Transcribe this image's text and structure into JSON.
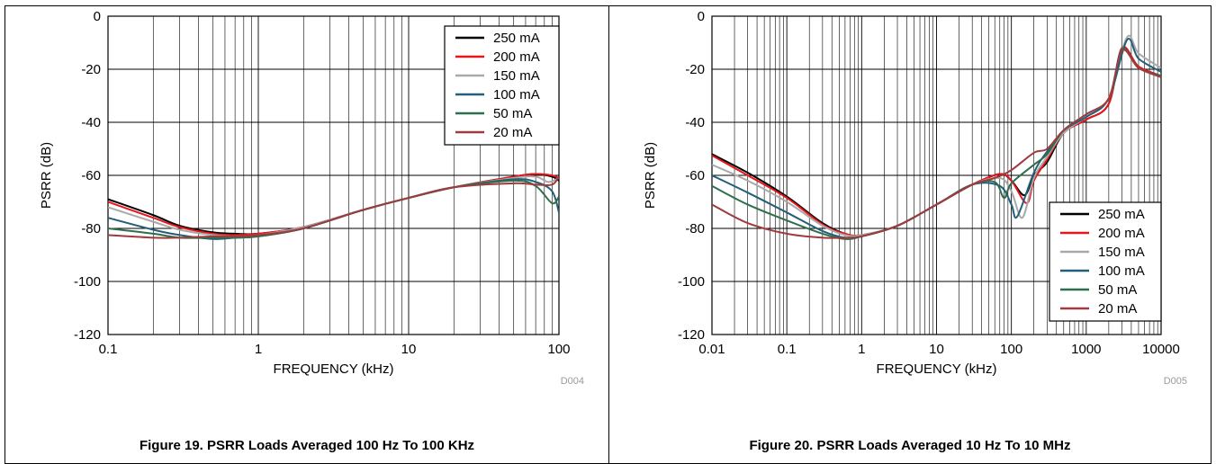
{
  "figures": [
    {
      "caption": "Figure 19. PSRR Loads Averaged 100 Hz To 100 KHz",
      "code": "D004"
    },
    {
      "caption": "Figure 20. PSRR Loads Averaged 10 Hz To 10 MHz",
      "code": "D005"
    }
  ],
  "chart_data": [
    {
      "type": "line",
      "title": "",
      "xlabel": "FREQUENCY (kHz)",
      "ylabel": "PSRR (dB)",
      "xscale": "log",
      "xlim": [
        0.1,
        100
      ],
      "ylim": [
        -120,
        0
      ],
      "xticks": [
        "0.1",
        "1",
        "10",
        "100"
      ],
      "yticks": [
        "0",
        "-20",
        "-40",
        "-60",
        "-80",
        "-100",
        "-120"
      ],
      "grid": true,
      "legend_position": "top-right",
      "colors": {
        "250 mA": "#000000",
        "200 mA": "#e8161b",
        "150 mA": "#a9a9a9",
        "100 mA": "#235f78",
        "50 mA": "#2f6e4c",
        "20 mA": "#9e3b3e"
      },
      "series": [
        {
          "name": "250 mA",
          "x": [
            0.1,
            0.2,
            0.3,
            0.5,
            0.7,
            1,
            2,
            5,
            10,
            20,
            50,
            70,
            90,
            100
          ],
          "y": [
            -69,
            -75,
            -79,
            -81.5,
            -82,
            -82,
            -79.5,
            -73,
            -68.5,
            -64.5,
            -60.5,
            -59.5,
            -60.5,
            -62
          ]
        },
        {
          "name": "200 mA",
          "x": [
            0.1,
            0.2,
            0.3,
            0.5,
            0.7,
            1,
            2,
            5,
            10,
            20,
            50,
            70,
            90,
            100
          ],
          "y": [
            -70,
            -76,
            -79.5,
            -82,
            -82.5,
            -82,
            -79.5,
            -73,
            -68.5,
            -64.5,
            -60.5,
            -59.5,
            -60,
            -61
          ]
        },
        {
          "name": "150 mA",
          "x": [
            0.1,
            0.2,
            0.3,
            0.5,
            0.7,
            1,
            2,
            5,
            10,
            20,
            50,
            70,
            85,
            100
          ],
          "y": [
            -72,
            -77.5,
            -80.5,
            -82.5,
            -83,
            -82.5,
            -79.5,
            -73,
            -68.5,
            -64.5,
            -61,
            -60.5,
            -62.5,
            -61
          ]
        },
        {
          "name": "100 mA",
          "x": [
            0.1,
            0.2,
            0.3,
            0.5,
            0.7,
            1,
            2,
            5,
            10,
            20,
            50,
            70,
            90,
            100
          ],
          "y": [
            -76,
            -80.5,
            -82.5,
            -84,
            -83.5,
            -83,
            -80,
            -73,
            -68.5,
            -64.5,
            -61.5,
            -62.5,
            -66,
            -74
          ]
        },
        {
          "name": "50 mA",
          "x": [
            0.1,
            0.2,
            0.3,
            0.5,
            0.7,
            1,
            2,
            5,
            10,
            20,
            50,
            70,
            90,
            100
          ],
          "y": [
            -80,
            -82,
            -83.5,
            -83.5,
            -83.5,
            -83,
            -80,
            -73,
            -68.5,
            -64.5,
            -62,
            -64,
            -70.5,
            -68
          ]
        },
        {
          "name": "20 mA",
          "x": [
            0.1,
            0.2,
            0.3,
            0.5,
            0.7,
            1,
            2,
            5,
            10,
            20,
            50,
            70,
            90,
            100
          ],
          "y": [
            -82.5,
            -83.5,
            -83.5,
            -83,
            -83,
            -82.5,
            -80,
            -73,
            -68.5,
            -64.5,
            -63,
            -63.5,
            -63.5,
            -60.5
          ]
        }
      ]
    },
    {
      "type": "line",
      "title": "",
      "xlabel": "FREQUENCY (kHz)",
      "ylabel": "PSRR (dB)",
      "xscale": "log",
      "xlim": [
        0.01,
        10000
      ],
      "ylim": [
        -120,
        0
      ],
      "xticks": [
        "0.01",
        "0.1",
        "1",
        "10",
        "100",
        "1000",
        "10000"
      ],
      "yticks": [
        "0",
        "-20",
        "-40",
        "-60",
        "-80",
        "-100",
        "-120"
      ],
      "grid": true,
      "legend_position": "bottom-right",
      "colors": {
        "250 mA": "#000000",
        "200 mA": "#e8161b",
        "150 mA": "#a9a9a9",
        "100 mA": "#235f78",
        "50 mA": "#2f6e4c",
        "20 mA": "#9e3b3e"
      },
      "series": [
        {
          "name": "250 mA",
          "x": [
            0.01,
            0.03,
            0.1,
            0.3,
            0.6,
            1,
            3,
            10,
            30,
            70,
            100,
            150,
            200,
            300,
            500,
            1000,
            2000,
            3000,
            5000,
            10000
          ],
          "y": [
            -52,
            -59,
            -68,
            -78,
            -82,
            -82.5,
            -79,
            -71,
            -63.5,
            -59.5,
            -62,
            -67.5,
            -60,
            -55,
            -44,
            -39,
            -33,
            -12,
            -19,
            -22.5
          ]
        },
        {
          "name": "200 mA",
          "x": [
            0.01,
            0.03,
            0.1,
            0.3,
            0.6,
            1,
            3,
            10,
            30,
            70,
            100,
            160,
            200,
            300,
            500,
            1000,
            2000,
            3000,
            5000,
            10000
          ],
          "y": [
            -52.5,
            -60,
            -68.5,
            -78.5,
            -82,
            -82.5,
            -79,
            -71,
            -63.5,
            -59.5,
            -62,
            -70.5,
            -62,
            -54,
            -44,
            -39,
            -33,
            -12,
            -19,
            -22.5
          ]
        },
        {
          "name": "150 mA",
          "x": [
            0.01,
            0.03,
            0.1,
            0.3,
            0.6,
            1,
            3,
            10,
            30,
            70,
            100,
            140,
            200,
            300,
            500,
            1000,
            2000,
            3500,
            5000,
            10000
          ],
          "y": [
            -56,
            -62,
            -70,
            -79,
            -82.5,
            -82.5,
            -79,
            -71,
            -63.5,
            -61,
            -66,
            -76,
            -61,
            -53,
            -44,
            -38,
            -31,
            -8,
            -14,
            -19.5
          ]
        },
        {
          "name": "100 mA",
          "x": [
            0.01,
            0.03,
            0.1,
            0.3,
            0.6,
            1,
            3,
            10,
            30,
            70,
            100,
            120,
            200,
            300,
            500,
            1000,
            2000,
            3500,
            5000,
            10000
          ],
          "y": [
            -60,
            -66.5,
            -74,
            -81,
            -83.5,
            -83,
            -79,
            -71,
            -63.5,
            -64,
            -71,
            -75.5,
            -59,
            -51,
            -43,
            -38,
            -31,
            -9,
            -16,
            -21
          ]
        },
        {
          "name": "50 mA",
          "x": [
            0.01,
            0.03,
            0.1,
            0.3,
            0.6,
            1,
            3,
            10,
            30,
            60,
            80,
            100,
            200,
            300,
            500,
            1000,
            2000,
            3000,
            5000,
            10000
          ],
          "y": [
            -64,
            -71,
            -77,
            -82,
            -84,
            -83,
            -79,
            -71,
            -63.5,
            -62.5,
            -68.5,
            -63,
            -56,
            -52,
            -43,
            -37,
            -31,
            -12.5,
            -19.5,
            -22.5
          ]
        },
        {
          "name": "20 mA",
          "x": [
            0.01,
            0.03,
            0.1,
            0.3,
            0.6,
            1,
            3,
            10,
            30,
            60,
            100,
            200,
            300,
            500,
            1000,
            2000,
            3000,
            5000,
            10000
          ],
          "y": [
            -71,
            -78,
            -82,
            -83.5,
            -83.5,
            -83,
            -79,
            -71,
            -63.5,
            -61,
            -58,
            -51.5,
            -50,
            -43,
            -37,
            -31,
            -13,
            -19.5,
            -23
          ]
        }
      ]
    }
  ]
}
